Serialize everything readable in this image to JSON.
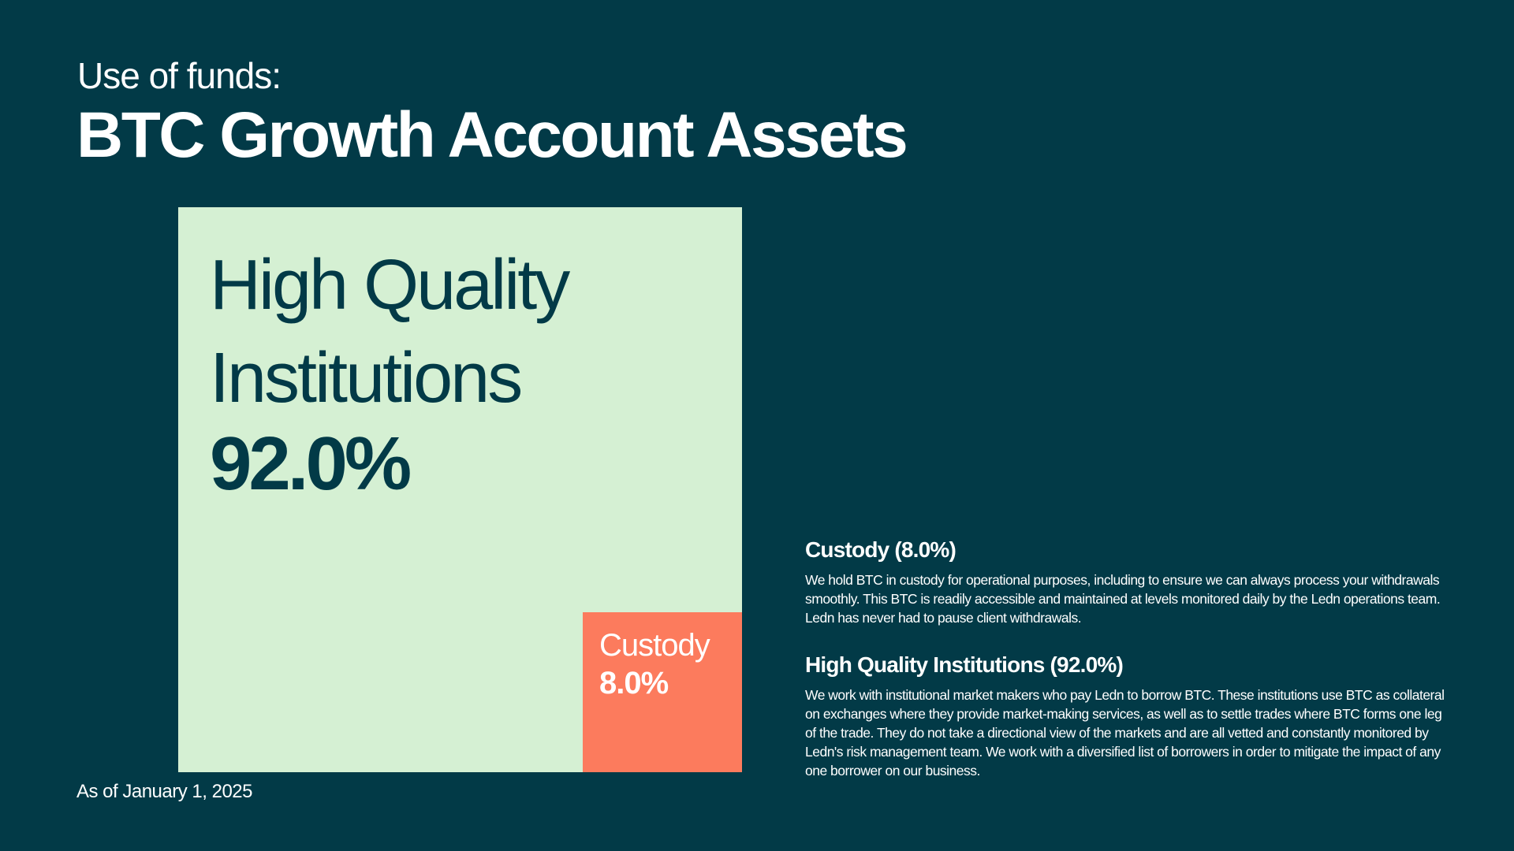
{
  "header": {
    "eyebrow": "Use of funds:",
    "title": "BTC Growth Account Assets"
  },
  "footer": {
    "as_of": "As of January 1, 2025"
  },
  "colors": {
    "background": "#023a47",
    "high_quality_institutions": "#d5f0d3",
    "custody": "#fc7b5d",
    "dark_text": "#023a47",
    "light_text": "#ffffff"
  },
  "chart_data": {
    "type": "treemap",
    "title": "BTC Growth Account Assets",
    "unit": "%",
    "items": [
      {
        "name": "High Quality Institutions",
        "value": 92.0,
        "label": "92.0%",
        "color": "#d5f0d3"
      },
      {
        "name": "Custody",
        "value": 8.0,
        "label": "8.0%",
        "color": "#fc7b5d"
      }
    ]
  },
  "notes": [
    {
      "title": "Custody (8.0%)",
      "body": "We hold BTC in custody for operational purposes, including to ensure we can always process your withdrawals smoothly. This BTC is readily accessible and maintained at levels monitored daily by the Ledn operations team. Ledn has never had to pause client withdrawals."
    },
    {
      "title": "High Quality Institutions (92.0%)",
      "body": "We work with institutional market makers who pay Ledn to borrow BTC. These institutions use BTC as collateral on exchanges where they provide market-making services, as well as to settle trades where BTC forms one leg of the trade. They do not take a directional view of the markets and are all vetted and constantly monitored by Ledn's risk management team. We work with a diversified list of borrowers in order to mitigate the impact of any one borrower on our business."
    }
  ]
}
